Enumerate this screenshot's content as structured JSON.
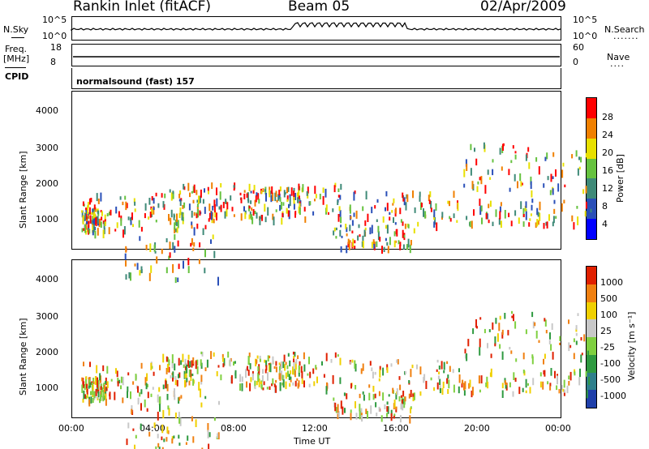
{
  "header": {
    "station": "Rankin Inlet (fitACF)",
    "beam": "Beam 05",
    "date": "02/Apr/2009"
  },
  "top_panels": {
    "nsky_label": "N.Sky",
    "nsky_ticks": [
      "10^5",
      "10^0"
    ],
    "nsearch_label": "N.Search",
    "nsearch_ticks": [
      "10^5",
      "10^0"
    ],
    "freq_label": "Freq.",
    "freq_unit": "[MHz]",
    "freq_ticks": [
      "18",
      "8"
    ],
    "nave_label": "Nave",
    "nave_ticks": [
      "60",
      "0"
    ],
    "cpid_label": "CPID",
    "cpid_value": "normalsound (fast) 157"
  },
  "chart_data": [
    {
      "type": "heatmap",
      "name": "power",
      "ylabel": "Slant Range [km]",
      "y_ticks": [
        "1000",
        "2000",
        "3000",
        "4000"
      ],
      "ylim": [
        200,
        4550
      ],
      "colorbar_label": "Power [dB]",
      "colorbar_ticks": [
        "4",
        "8",
        "12",
        "16",
        "20",
        "24",
        "28"
      ],
      "colorbar_colors": [
        "#0000ff",
        "#2a4fb8",
        "#3f8a78",
        "#66c23f",
        "#e8e000",
        "#f08000",
        "#ff0000"
      ],
      "x_ticks": [
        "00:00",
        "04:00",
        "08:00",
        "12:00",
        "16:00",
        "20:00",
        "00:00"
      ]
    },
    {
      "type": "heatmap",
      "name": "velocity",
      "ylabel": "Slant Range [km]",
      "y_ticks": [
        "1000",
        "2000",
        "3000",
        "4000"
      ],
      "ylim": [
        200,
        4550
      ],
      "colorbar_label": "Velocity [m s⁻¹]",
      "colorbar_ticks": [
        "1000",
        "500",
        "100",
        "25",
        "-25",
        "-100",
        "-500",
        "-1000"
      ],
      "colorbar_colors": [
        "#1f3faa",
        "#2e7f8c",
        "#2e9a40",
        "#7fd040",
        "#c8c8c8",
        "#f0d000",
        "#f08010",
        "#e02000"
      ],
      "x_ticks": [
        "00:00",
        "04:00",
        "08:00",
        "12:00",
        "16:00",
        "20:00",
        "00:00"
      ],
      "xlabel": "Time UT"
    }
  ]
}
